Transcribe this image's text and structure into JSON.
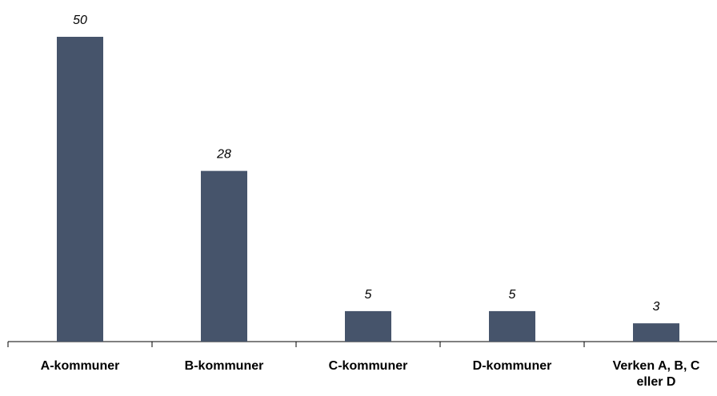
{
  "chart_data": {
    "type": "bar",
    "categories": [
      "A-kommuner",
      "B-kommuner",
      "C-kommuner",
      "D-kommuner",
      "Verken A, B, C eller D"
    ],
    "values": [
      50,
      28,
      5,
      5,
      3
    ],
    "color": "#46546b"
  }
}
